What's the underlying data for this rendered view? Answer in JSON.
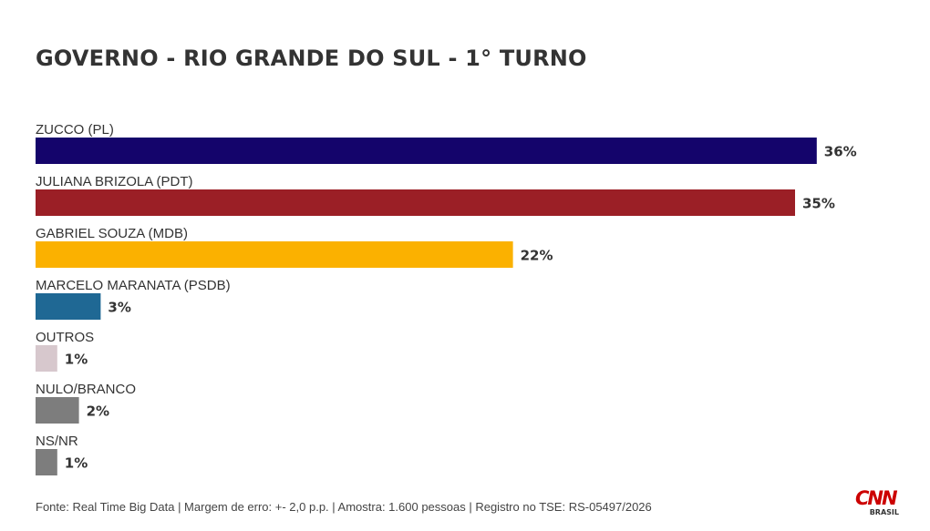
{
  "chart_data": {
    "type": "bar",
    "orientation": "horizontal",
    "title": "GOVERNO - RIO GRANDE DO SUL - 1° TURNO",
    "categories": [
      "ZUCCO (PL)",
      "JULIANA BRIZOLA (PDT)",
      "GABRIEL SOUZA (MDB)",
      "MARCELO MARANATA (PSDB)",
      "OUTROS",
      "NULO/BRANCO",
      "NS/NR"
    ],
    "values": [
      36,
      35,
      22,
      3,
      1,
      2,
      1
    ],
    "value_labels": [
      "36%",
      "35%",
      "22%",
      "3%",
      "1%",
      "2%",
      "1%"
    ],
    "colors": [
      "#14046b",
      "#9b1f26",
      "#fbb100",
      "#1f6894",
      "#d7c8cd",
      "#7d7d7d",
      "#7d7d7d"
    ],
    "xlabel": "",
    "ylabel": "",
    "grid": false,
    "legend": "none"
  },
  "footer": {
    "source": "Fonte: Real Time Big Data | Margem de erro: +- 2,0 p.p. | Amostra: 1.600 pessoas | Registro no TSE: RS-05497/2026"
  },
  "logo": {
    "name": "CNN",
    "sub": "BRASIL"
  }
}
